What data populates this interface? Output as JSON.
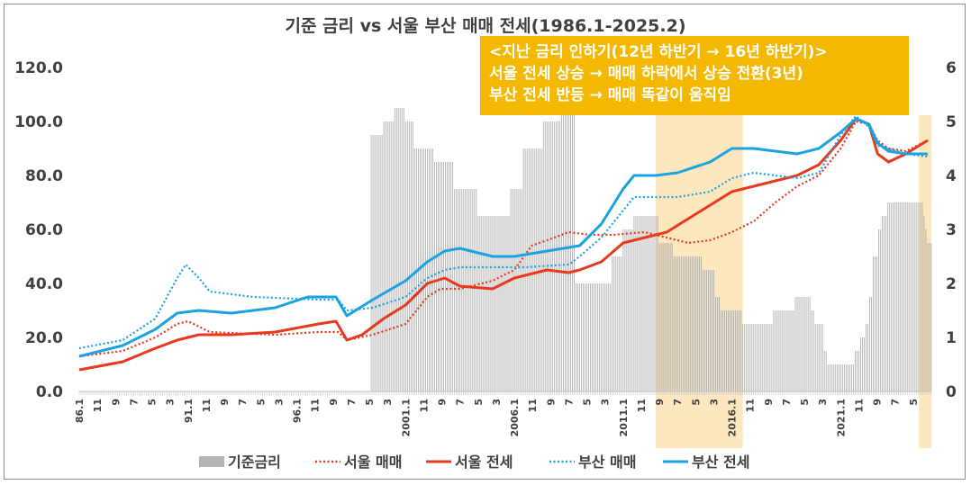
{
  "chart_data": {
    "type": "bar+line",
    "title": "기준 금리 vs 서울 부산 매매 전세(1986.1-2025.2)",
    "annotation": [
      "<지난 금리 인하기(12년 하반기 → 16년 하반기)>",
      "서울 전세 상승 → 매매 하락에서 상승 전환(3년)",
      "부산 전세 반등 → 매매 똑같이 움직임"
    ],
    "y_left": {
      "ticks": [
        "0.0",
        "20.0",
        "40.0",
        "60.0",
        "80.0",
        "100.0",
        "120.0"
      ],
      "range": [
        0,
        120
      ]
    },
    "y_right": {
      "ticks": [
        "0",
        "1",
        "2",
        "3",
        "4",
        "5",
        "6"
      ],
      "range": [
        0,
        6
      ]
    },
    "x_range": [
      1986.0,
      2025.17
    ],
    "x_ticks": [
      "86.1",
      "11",
      "9",
      "7",
      "5",
      "3",
      "91.1",
      "11",
      "9",
      "7",
      "5",
      "3",
      "96.1",
      "11",
      "9",
      "7",
      "5",
      "3",
      "2001.1",
      "11",
      "9",
      "7",
      "5",
      "3",
      "2006.1",
      "11",
      "9",
      "7",
      "5",
      "3",
      "2011.1",
      "11",
      "9",
      "7",
      "5",
      "3",
      "2016.1",
      "11",
      "9",
      "7",
      "5",
      "3",
      "2021.1",
      "11",
      "9",
      "7",
      "5"
    ],
    "highlight_periods": [
      [
        2012.5,
        2016.5
      ],
      [
        2024.6,
        2025.17
      ]
    ],
    "legend": {
      "placement": "bottom",
      "labels": [
        "기준금리",
        "서울 매매",
        "서울 전세",
        "부산 매매",
        "부산 전세"
      ]
    },
    "colors": {
      "base_rate": "#b4b4b4",
      "seoul": "#e8391f",
      "busan": "#1aa3e0",
      "highlight": "#fbe3b3",
      "callout": "#f5b800"
    },
    "base_rate": {
      "axis": "right",
      "steps": [
        [
          1986.0,
          0
        ],
        [
          1999.4,
          4.75
        ],
        [
          2000.0,
          5.0
        ],
        [
          2000.5,
          5.25
        ],
        [
          2001.0,
          5.0
        ],
        [
          2001.4,
          4.5
        ],
        [
          2002.3,
          4.25
        ],
        [
          2003.2,
          3.75
        ],
        [
          2004.3,
          3.25
        ],
        [
          2005.8,
          3.75
        ],
        [
          2006.4,
          4.5
        ],
        [
          2007.3,
          5.0
        ],
        [
          2008.1,
          5.25
        ],
        [
          2008.8,
          2.0
        ],
        [
          2010.5,
          2.5
        ],
        [
          2011.0,
          3.0
        ],
        [
          2011.5,
          3.25
        ],
        [
          2012.6,
          2.75
        ],
        [
          2013.3,
          2.5
        ],
        [
          2014.6,
          2.25
        ],
        [
          2015.2,
          1.75
        ],
        [
          2015.5,
          1.5
        ],
        [
          2016.5,
          1.25
        ],
        [
          2017.9,
          1.5
        ],
        [
          2018.9,
          1.75
        ],
        [
          2019.6,
          1.5
        ],
        [
          2019.8,
          1.25
        ],
        [
          2020.2,
          0.75
        ],
        [
          2020.4,
          0.5
        ],
        [
          2021.6,
          0.75
        ],
        [
          2021.9,
          1.0
        ],
        [
          2022.1,
          1.25
        ],
        [
          2022.3,
          1.75
        ],
        [
          2022.5,
          2.5
        ],
        [
          2022.7,
          3.0
        ],
        [
          2022.9,
          3.25
        ],
        [
          2023.1,
          3.5
        ],
        [
          2024.8,
          3.25
        ],
        [
          2024.9,
          3.0
        ],
        [
          2025.0,
          2.75
        ]
      ]
    },
    "series": [
      {
        "name": "서울 매매",
        "axis": "left",
        "style": "dotted",
        "color": "#e8391f",
        "points": [
          [
            1986.0,
            13
          ],
          [
            1988.0,
            15
          ],
          [
            1989.5,
            20
          ],
          [
            1990.5,
            25
          ],
          [
            1991.0,
            26
          ],
          [
            1992.0,
            22
          ],
          [
            1995.0,
            21
          ],
          [
            1997.0,
            22
          ],
          [
            1997.9,
            22
          ],
          [
            1998.3,
            19
          ],
          [
            1999.5,
            21
          ],
          [
            2001.0,
            25
          ],
          [
            2002.0,
            35
          ],
          [
            2002.6,
            38
          ],
          [
            2003.5,
            38
          ],
          [
            2005.0,
            41
          ],
          [
            2006.0,
            45
          ],
          [
            2006.8,
            54
          ],
          [
            2007.5,
            56
          ],
          [
            2008.5,
            59
          ],
          [
            2009.5,
            58
          ],
          [
            2010.5,
            58
          ],
          [
            2012.0,
            59
          ],
          [
            2013.0,
            57
          ],
          [
            2014.0,
            55
          ],
          [
            2015.0,
            56
          ],
          [
            2016.0,
            59
          ],
          [
            2017.0,
            63
          ],
          [
            2018.0,
            70
          ],
          [
            2019.0,
            76
          ],
          [
            2020.0,
            80
          ],
          [
            2021.0,
            90
          ],
          [
            2021.7,
            100
          ],
          [
            2022.3,
            99
          ],
          [
            2022.7,
            93
          ],
          [
            2023.2,
            90
          ],
          [
            2024.0,
            89
          ],
          [
            2025.0,
            93
          ]
        ]
      },
      {
        "name": "서울 전세",
        "axis": "left",
        "style": "solid",
        "color": "#e8391f",
        "points": [
          [
            1986.0,
            8
          ],
          [
            1988.0,
            11
          ],
          [
            1989.5,
            16
          ],
          [
            1990.5,
            19
          ],
          [
            1991.5,
            21
          ],
          [
            1993.0,
            21
          ],
          [
            1995.0,
            22
          ],
          [
            1997.0,
            25
          ],
          [
            1997.8,
            26
          ],
          [
            1998.3,
            19
          ],
          [
            1999.0,
            21
          ],
          [
            2000.0,
            27
          ],
          [
            2001.0,
            32
          ],
          [
            2002.0,
            40
          ],
          [
            2002.8,
            42
          ],
          [
            2003.5,
            39
          ],
          [
            2005.0,
            38
          ],
          [
            2006.0,
            42
          ],
          [
            2007.5,
            45
          ],
          [
            2008.5,
            44
          ],
          [
            2009.0,
            45
          ],
          [
            2010.0,
            48
          ],
          [
            2011.0,
            55
          ],
          [
            2012.0,
            57
          ],
          [
            2013.0,
            59
          ],
          [
            2014.0,
            64
          ],
          [
            2015.0,
            69
          ],
          [
            2016.0,
            74
          ],
          [
            2017.0,
            76
          ],
          [
            2018.0,
            78
          ],
          [
            2019.0,
            80
          ],
          [
            2020.0,
            84
          ],
          [
            2021.0,
            93
          ],
          [
            2021.7,
            101
          ],
          [
            2022.3,
            99
          ],
          [
            2022.7,
            88
          ],
          [
            2023.2,
            85
          ],
          [
            2024.0,
            88
          ],
          [
            2025.0,
            93
          ]
        ]
      },
      {
        "name": "부산 매매",
        "axis": "left",
        "style": "dotted",
        "color": "#1aa3e0",
        "points": [
          [
            1986.0,
            16
          ],
          [
            1988.0,
            19
          ],
          [
            1989.5,
            27
          ],
          [
            1990.5,
            42
          ],
          [
            1990.9,
            47
          ],
          [
            1991.5,
            42
          ],
          [
            1992.0,
            37
          ],
          [
            1994.0,
            35
          ],
          [
            1997.0,
            34
          ],
          [
            1997.9,
            34
          ],
          [
            1998.3,
            30
          ],
          [
            1999.5,
            31
          ],
          [
            2001.0,
            35
          ],
          [
            2002.0,
            42
          ],
          [
            2002.8,
            45
          ],
          [
            2003.5,
            46
          ],
          [
            2005.0,
            46
          ],
          [
            2006.5,
            46
          ],
          [
            2008.5,
            47
          ],
          [
            2009.0,
            50
          ],
          [
            2010.0,
            57
          ],
          [
            2011.0,
            67
          ],
          [
            2011.5,
            72
          ],
          [
            2012.5,
            72
          ],
          [
            2013.5,
            72
          ],
          [
            2015.0,
            74
          ],
          [
            2016.0,
            79
          ],
          [
            2017.0,
            81
          ],
          [
            2018.0,
            80
          ],
          [
            2019.0,
            79
          ],
          [
            2020.0,
            81
          ],
          [
            2021.0,
            95
          ],
          [
            2021.7,
            102
          ],
          [
            2022.3,
            98
          ],
          [
            2022.7,
            91
          ],
          [
            2023.2,
            90
          ],
          [
            2024.0,
            88
          ],
          [
            2025.0,
            87
          ]
        ]
      },
      {
        "name": "부산 전세",
        "axis": "left",
        "style": "solid",
        "color": "#1aa3e0",
        "points": [
          [
            1986.0,
            13
          ],
          [
            1988.0,
            17
          ],
          [
            1989.5,
            23
          ],
          [
            1990.5,
            29
          ],
          [
            1991.5,
            30
          ],
          [
            1993.0,
            29
          ],
          [
            1995.0,
            31
          ],
          [
            1996.5,
            35
          ],
          [
            1997.8,
            35
          ],
          [
            1998.3,
            28
          ],
          [
            1999.5,
            34
          ],
          [
            2001.0,
            41
          ],
          [
            2002.0,
            48
          ],
          [
            2002.8,
            52
          ],
          [
            2003.5,
            53
          ],
          [
            2005.0,
            50
          ],
          [
            2006.0,
            50
          ],
          [
            2007.5,
            52
          ],
          [
            2009.0,
            54
          ],
          [
            2010.0,
            62
          ],
          [
            2011.0,
            75
          ],
          [
            2011.5,
            80
          ],
          [
            2012.5,
            80
          ],
          [
            2013.5,
            81
          ],
          [
            2015.0,
            85
          ],
          [
            2016.0,
            90
          ],
          [
            2017.0,
            90
          ],
          [
            2018.0,
            89
          ],
          [
            2019.0,
            88
          ],
          [
            2020.0,
            90
          ],
          [
            2021.0,
            96
          ],
          [
            2021.7,
            101
          ],
          [
            2022.3,
            99
          ],
          [
            2022.7,
            92
          ],
          [
            2023.2,
            89
          ],
          [
            2024.0,
            88
          ],
          [
            2025.0,
            88
          ]
        ]
      }
    ]
  }
}
